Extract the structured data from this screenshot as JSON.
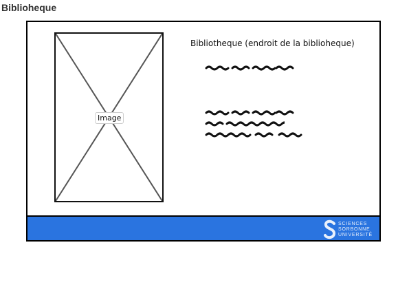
{
  "page": {
    "title": "Biblioheque"
  },
  "mockup": {
    "image_placeholder_label": "Image",
    "heading": "Bibliotheque (endroit de la biblioheque)",
    "text_blocks": [
      {
        "lines": 1
      },
      {
        "lines": 3
      }
    ]
  },
  "footer": {
    "background_color": "#2a74e0",
    "logo": {
      "icon": "sorbonne-s-logo",
      "lines": [
        "SCIENCES",
        "SORBONNE",
        "UNIVERSITÉ"
      ]
    }
  }
}
